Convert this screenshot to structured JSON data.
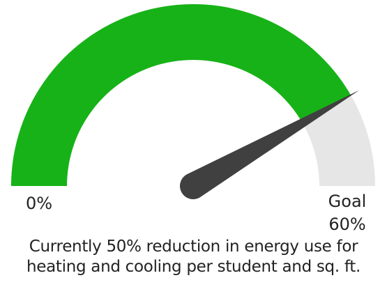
{
  "chart_data": {
    "type": "gauge",
    "min": 0,
    "max": 60,
    "value": 50,
    "min_label": "0%",
    "max_label_line1": "Goal",
    "max_label_line2": "60%",
    "caption_line1": "Currently 50% reduction in energy use for",
    "caption_line2": "heating and cooling per student and sq. ft.",
    "colors": {
      "fill": "#17b217",
      "track": "#e6e6e6",
      "needle": "#404040"
    }
  }
}
